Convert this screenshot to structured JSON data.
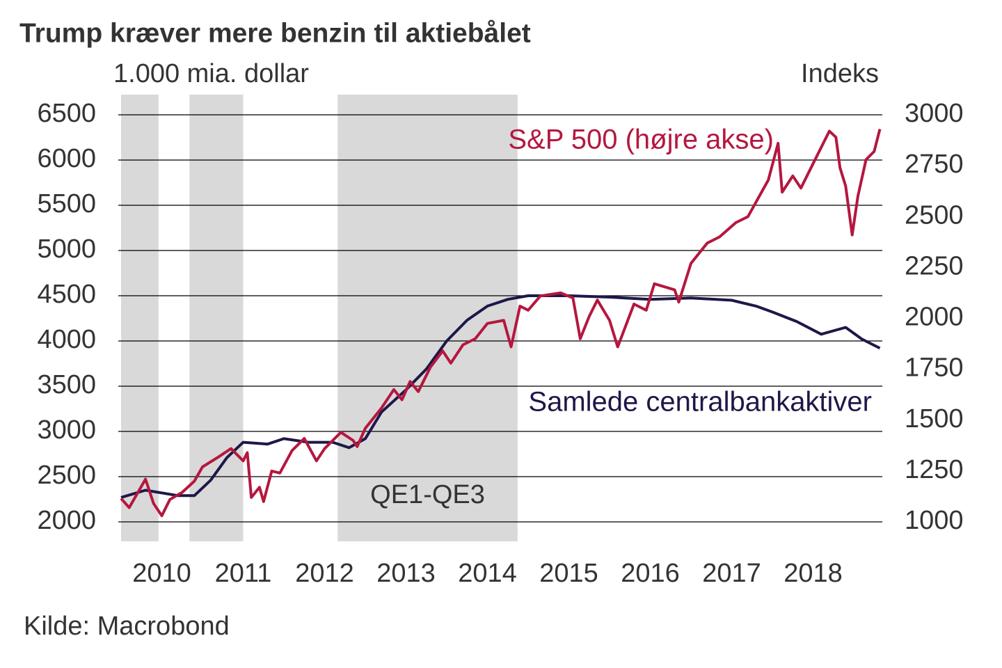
{
  "chart_data": {
    "type": "line",
    "title": "Trump kræver mere benzin til aktiebålet",
    "y_label": "1.000 mia. dollar",
    "y2_label": "Indeks",
    "source": "Kilde: Macrobond",
    "shade_label": "QE1-QE3",
    "shaded_periods": [
      [
        2010,
        2010.46
      ],
      [
        2010.84,
        2011.5
      ],
      [
        2012.66,
        2014.87
      ]
    ],
    "xlim": [
      2010,
      2019.35
    ],
    "xticks": [
      2010,
      2011,
      2012,
      2013,
      2014,
      2015,
      2016,
      2017,
      2018
    ],
    "ylim": [
      2000,
      6500
    ],
    "yticks": [
      2000,
      2500,
      3000,
      3500,
      4000,
      4500,
      5000,
      5500,
      6000,
      6500
    ],
    "y2lim": [
      1000,
      3000
    ],
    "y2ticks": [
      1000,
      1250,
      1500,
      1750,
      2000,
      2250,
      2500,
      2750,
      3000
    ],
    "grid": true,
    "series": [
      {
        "name": "Samlede centralbankaktiver",
        "color": "#1d1848",
        "x": [
          2010.0,
          2010.3,
          2010.7,
          2010.9,
          2011.1,
          2011.3,
          2011.5,
          2011.8,
          2012.0,
          2012.3,
          2012.6,
          2012.8,
          2013.0,
          2013.2,
          2013.5,
          2013.75,
          2014.0,
          2014.25,
          2014.5,
          2014.75,
          2015.0,
          2015.5,
          2016.0,
          2016.5,
          2017.0,
          2017.5,
          2017.8,
          2018.0,
          2018.3,
          2018.6,
          2018.9,
          2019.1,
          2019.32
        ],
        "values": [
          2270,
          2350,
          2290,
          2290,
          2460,
          2710,
          2880,
          2860,
          2920,
          2880,
          2880,
          2820,
          2920,
          3215,
          3460,
          3690,
          4000,
          4230,
          4385,
          4460,
          4500,
          4500,
          4485,
          4460,
          4475,
          4450,
          4385,
          4320,
          4215,
          4075,
          4150,
          4020,
          3920
        ]
      },
      {
        "name": "S&P 500 (højre akse)",
        "color": "#b5173f",
        "axis": "y2",
        "x": [
          2010.0,
          2010.1,
          2010.3,
          2010.4,
          2010.5,
          2010.6,
          2010.75,
          2010.9,
          2011.0,
          2011.2,
          2011.35,
          2011.5,
          2011.55,
          2011.6,
          2011.7,
          2011.75,
          2011.85,
          2011.95,
          2012.1,
          2012.25,
          2012.4,
          2012.5,
          2012.7,
          2012.85,
          2012.9,
          2013.0,
          2013.2,
          2013.35,
          2013.45,
          2013.55,
          2013.65,
          2013.8,
          2013.95,
          2014.05,
          2014.2,
          2014.35,
          2014.5,
          2014.7,
          2014.79,
          2014.9,
          2015.0,
          2015.15,
          2015.4,
          2015.55,
          2015.64,
          2015.75,
          2015.85,
          2016.0,
          2016.1,
          2016.3,
          2016.45,
          2016.55,
          2016.8,
          2016.85,
          2017.0,
          2017.2,
          2017.35,
          2017.55,
          2017.7,
          2017.95,
          2018.07,
          2018.12,
          2018.25,
          2018.35,
          2018.5,
          2018.7,
          2018.78,
          2018.83,
          2018.9,
          2018.98,
          2019.05,
          2019.15,
          2019.25,
          2019.32
        ],
        "values": [
          1115,
          1070,
          1210,
          1090,
          1030,
          1110,
          1145,
          1200,
          1270,
          1320,
          1360,
          1300,
          1340,
          1120,
          1170,
          1100,
          1250,
          1240,
          1350,
          1410,
          1300,
          1360,
          1440,
          1400,
          1370,
          1460,
          1560,
          1650,
          1600,
          1690,
          1640,
          1760,
          1840,
          1780,
          1870,
          1900,
          1975,
          1990,
          1860,
          2060,
          2040,
          2110,
          2125,
          2100,
          1900,
          2010,
          2090,
          1990,
          1860,
          2070,
          2040,
          2170,
          2140,
          2080,
          2270,
          2370,
          2400,
          2470,
          2500,
          2680,
          2860,
          2620,
          2700,
          2640,
          2760,
          2920,
          2890,
          2740,
          2650,
          2410,
          2600,
          2780,
          2820,
          2930
        ]
      }
    ]
  }
}
